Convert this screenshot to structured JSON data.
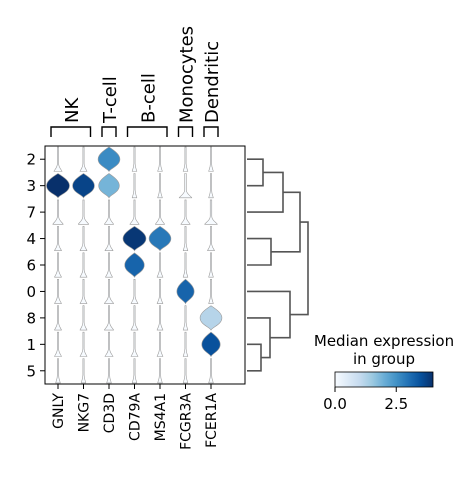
{
  "chart_data": {
    "type": "stacked-violin",
    "genes": [
      "GNLY",
      "NKG7",
      "CD3D",
      "CD79A",
      "MS4A1",
      "FCGR3A",
      "FCER1A"
    ],
    "clusters": [
      "2",
      "3",
      "7",
      "4",
      "6",
      "0",
      "8",
      "1",
      "5"
    ],
    "groups": [
      {
        "label": "NK",
        "genes": [
          "GNLY",
          "NKG7"
        ]
      },
      {
        "label": "T-cell",
        "genes": [
          "CD3D"
        ]
      },
      {
        "label": "B-cell",
        "genes": [
          "CD79A",
          "MS4A1"
        ]
      },
      {
        "label": "Monocytes",
        "genes": [
          "FCGR3A"
        ]
      },
      {
        "label": "Dendritic",
        "genes": [
          "FCER1A"
        ]
      }
    ],
    "median_expression": [
      [
        0.0,
        0.0,
        2.6,
        0.0,
        0.0,
        0.0,
        0.0
      ],
      [
        4.0,
        3.7,
        1.9,
        0.0,
        0.0,
        0.0,
        0.0
      ],
      [
        0.0,
        0.0,
        0.0,
        0.0,
        0.0,
        0.0,
        0.0
      ],
      [
        0.0,
        0.0,
        0.0,
        3.9,
        2.9,
        0.0,
        0.0
      ],
      [
        0.0,
        0.0,
        0.0,
        3.2,
        0.0,
        0.0,
        0.0
      ],
      [
        0.0,
        0.0,
        0.0,
        0.0,
        0.0,
        3.2,
        0.0
      ],
      [
        0.0,
        0.0,
        0.0,
        0.0,
        0.0,
        0.0,
        1.2
      ],
      [
        0.0,
        0.0,
        0.0,
        0.0,
        0.0,
        0.0,
        3.5
      ],
      [
        0.0,
        0.0,
        0.0,
        0.0,
        0.0,
        0.0,
        0.0
      ]
    ],
    "violin_width": [
      [
        0.35,
        0.3,
        0.95,
        0.2,
        0.2,
        0.2,
        0.2
      ],
      [
        1.0,
        0.95,
        0.9,
        0.2,
        0.2,
        0.55,
        0.2
      ],
      [
        0.45,
        0.45,
        0.4,
        0.4,
        0.4,
        0.4,
        0.55
      ],
      [
        0.3,
        0.3,
        0.35,
        1.0,
        0.95,
        0.2,
        0.3
      ],
      [
        0.3,
        0.3,
        0.3,
        0.85,
        0.25,
        0.2,
        0.2
      ],
      [
        0.3,
        0.3,
        0.4,
        0.3,
        0.25,
        0.75,
        0.2
      ],
      [
        0.3,
        0.3,
        0.4,
        0.3,
        0.25,
        0.2,
        0.95
      ],
      [
        0.3,
        0.3,
        0.35,
        0.3,
        0.25,
        0.2,
        0.8
      ],
      [
        0.2,
        0.2,
        0.2,
        0.2,
        0.2,
        0.2,
        0.2
      ]
    ],
    "colorbar": {
      "title_lines": [
        "Median expression",
        "in group"
      ],
      "min": 0.0,
      "max": 4.0,
      "ticks": [
        {
          "value": 0.0,
          "label": "0.0"
        },
        {
          "value": 2.5,
          "label": "2.5"
        }
      ],
      "colors": [
        "#f7fbff",
        "#deebf7",
        "#c6dbef",
        "#9ecae1",
        "#6baed6",
        "#4292c6",
        "#2171b5",
        "#08519c",
        "#08306b"
      ]
    },
    "dendrogram": true
  }
}
